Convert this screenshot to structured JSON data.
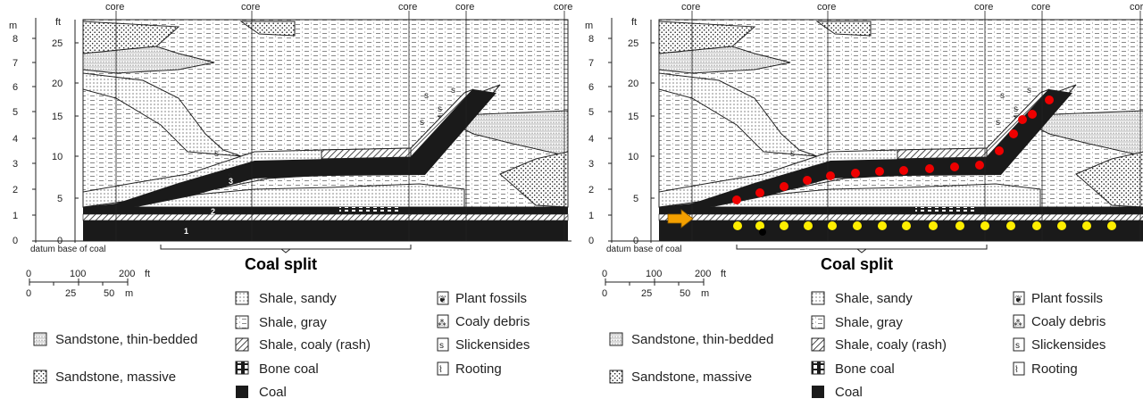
{
  "core_label": "core",
  "unit_m": "m",
  "unit_ft": "ft",
  "m_ticks": [
    "8",
    "7",
    "6",
    "5",
    "4",
    "3",
    "2",
    "1",
    "0"
  ],
  "ft_ticks": [
    "25",
    "20",
    "15",
    "10",
    "5",
    "0"
  ],
  "datum_label": "datum base of coal",
  "split_label": "Coal split",
  "scale": {
    "ft_values": [
      "0",
      "100",
      "200"
    ],
    "ft_unit": "ft",
    "m_values": [
      "0",
      "25",
      "50"
    ],
    "m_unit": "m"
  },
  "layer_numbers": [
    "1",
    "2",
    "3"
  ],
  "legend_left": [
    "Sandstone, thin-bedded",
    "Sandstone, massive"
  ],
  "legend_mid": [
    "Shale, sandy",
    "Shale, gray",
    "Shale, coaly (rash)",
    "Bone coal",
    "Coal"
  ],
  "legend_right": [
    "Plant fossils",
    "Coaly debris",
    "Slickensides",
    "Rooting"
  ],
  "colors": {
    "coal": "#1a1a1a",
    "red_marker": "#ee0000",
    "yellow_marker": "#ffee00",
    "arrow": "#f4a000"
  }
}
